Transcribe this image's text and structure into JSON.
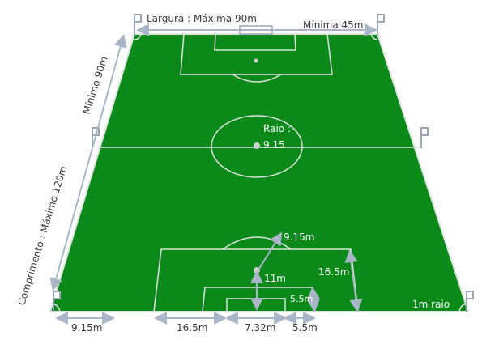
{
  "colors": {
    "pitch": "#0b8a1a",
    "lines": "#dde3dd",
    "arrows": "#a9b6c8",
    "text_dark": "#3a3a3a",
    "text_light": "#ffffff",
    "flag": "#9aa6b6"
  },
  "labels": {
    "width_max": "Largura : Máxima 90m",
    "width_min": "Mínima 45m",
    "length_min": "Mínimo 90m",
    "length_max": "Comprimento : Máximo 120m",
    "radius_title": "Raio :",
    "radius_value": "9.15",
    "penalty_arc": "9.15m",
    "penalty_spot": "11m",
    "penalty_depth": "16.5m",
    "goal_area_depth": "5.5m",
    "corner_arc": "1m raio",
    "bottom_corner": "9.15m",
    "bottom_penalty": "16.5m",
    "bottom_goal": "7.32m",
    "bottom_goal_area": "5.5m"
  }
}
